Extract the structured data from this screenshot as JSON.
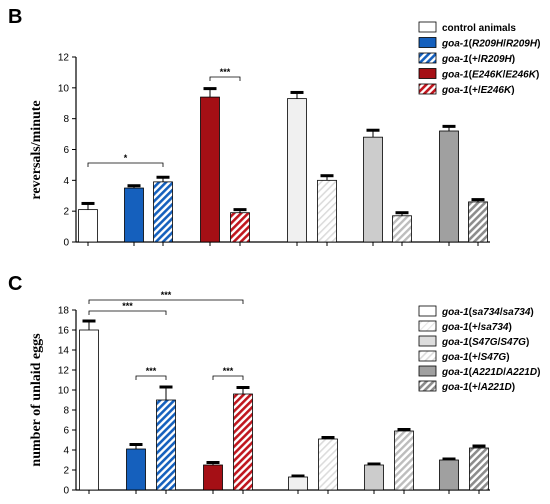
{
  "chart_data": [
    {
      "type": "bar",
      "panel_label": "B",
      "ylabel": "reversals/minute",
      "ylim": [
        0,
        12
      ],
      "yticks": [
        "0",
        "2",
        "4",
        "6",
        "8",
        "10",
        "12"
      ],
      "legend": [
        {
          "label": "control animals",
          "fill": "#ffffff",
          "pattern": "none"
        },
        {
          "label": "goa-1(R209H/R209H)",
          "fill": "#1560bd",
          "pattern": "none"
        },
        {
          "label": "goa-1(+/R209H)",
          "fill": "#1560bd",
          "pattern": "hatch"
        },
        {
          "label": "goa-1(E246K/E246K)",
          "fill": "#a50f15",
          "pattern": "none"
        },
        {
          "label": "goa-1(+/E246K)",
          "fill": "#c0161e",
          "pattern": "hatch"
        }
      ],
      "bars": [
        {
          "value": 2.1,
          "error": 0.4,
          "fill": "#ffffff",
          "pattern": "none"
        },
        {
          "value": 3.5,
          "error": 0.15,
          "fill": "#1560bd",
          "pattern": "none"
        },
        {
          "value": 3.9,
          "error": 0.3,
          "fill": "#1560bd",
          "pattern": "hatch"
        },
        {
          "value": 9.4,
          "error": 0.55,
          "fill": "#a50f15",
          "pattern": "none"
        },
        {
          "value": 1.9,
          "error": 0.2,
          "fill": "#c0161e",
          "pattern": "hatch"
        },
        {
          "value": 9.3,
          "error": 0.4,
          "fill": "#f0f0f0",
          "pattern": "none"
        },
        {
          "value": 4.0,
          "error": 0.3,
          "fill": "#f0f0f0",
          "pattern": "hatch"
        },
        {
          "value": 6.8,
          "error": 0.45,
          "fill": "#cccccc",
          "pattern": "none"
        },
        {
          "value": 1.7,
          "error": 0.2,
          "fill": "#cccccc",
          "pattern": "hatch"
        },
        {
          "value": 7.2,
          "error": 0.3,
          "fill": "#a0a0a0",
          "pattern": "none"
        },
        {
          "value": 2.6,
          "error": 0.15,
          "fill": "#a0a0a0",
          "pattern": "hatch"
        }
      ],
      "significance": [
        {
          "from": 0,
          "to": 2,
          "label": "*"
        },
        {
          "from": 3,
          "to": 4,
          "label": "***"
        }
      ]
    },
    {
      "type": "bar",
      "panel_label": "C",
      "ylabel": "number of unlaid eggs",
      "ylim": [
        0,
        18
      ],
      "yticks": [
        "0",
        "2",
        "4",
        "6",
        "8",
        "10",
        "12",
        "14",
        "16",
        "18"
      ],
      "legend": [
        {
          "label": "goa-1(sa734/sa734)",
          "fill": "#ffffff",
          "pattern": "none"
        },
        {
          "label": "goa-1(+/sa734)",
          "fill": "#ffffff",
          "pattern": "hatch"
        },
        {
          "label": "goa-1(S47G/S47G)",
          "fill": "#dddddd",
          "pattern": "none"
        },
        {
          "label": "goa-1(+/S47G)",
          "fill": "#dddddd",
          "pattern": "hatch"
        },
        {
          "label": "goa-1(A221D/A221D)",
          "fill": "#a0a0a0",
          "pattern": "none"
        },
        {
          "label": "goa-1(+/A221D)",
          "fill": "#a0a0a0",
          "pattern": "hatch"
        }
      ],
      "bars": [
        {
          "value": 16.0,
          "error": 0.9,
          "fill": "#ffffff",
          "pattern": "none"
        },
        {
          "value": 4.1,
          "error": 0.45,
          "fill": "#1560bd",
          "pattern": "none"
        },
        {
          "value": 9.0,
          "error": 1.3,
          "fill": "#1560bd",
          "pattern": "hatch"
        },
        {
          "value": 2.5,
          "error": 0.25,
          "fill": "#a50f15",
          "pattern": "none"
        },
        {
          "value": 9.6,
          "error": 0.65,
          "fill": "#c0161e",
          "pattern": "hatch"
        },
        {
          "value": 1.3,
          "error": 0.1,
          "fill": "#f0f0f0",
          "pattern": "none"
        },
        {
          "value": 5.1,
          "error": 0.15,
          "fill": "#f0f0f0",
          "pattern": "hatch"
        },
        {
          "value": 2.5,
          "error": 0.1,
          "fill": "#cccccc",
          "pattern": "none"
        },
        {
          "value": 5.9,
          "error": 0.15,
          "fill": "#cccccc",
          "pattern": "hatch"
        },
        {
          "value": 3.0,
          "error": 0.1,
          "fill": "#a0a0a0",
          "pattern": "none"
        },
        {
          "value": 4.2,
          "error": 0.2,
          "fill": "#a0a0a0",
          "pattern": "hatch"
        }
      ],
      "significance": [
        {
          "from": 0,
          "to": 2,
          "label": "***"
        },
        {
          "from": 0,
          "to": 4,
          "label": "***"
        },
        {
          "from": 1,
          "to": 2,
          "label": "***"
        },
        {
          "from": 3,
          "to": 4,
          "label": "***"
        }
      ]
    }
  ]
}
